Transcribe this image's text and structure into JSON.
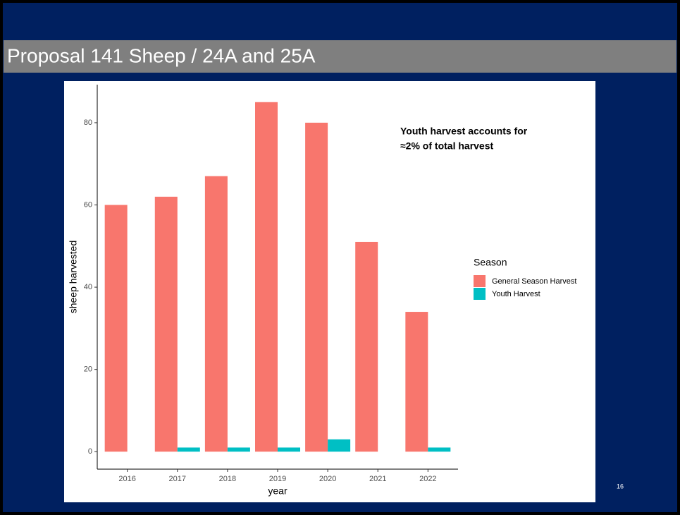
{
  "slide": {
    "title": "Proposal 141 Sheep / 24A and 25A",
    "page_number": "16"
  },
  "chart_data": {
    "type": "bar",
    "categories": [
      "2016",
      "2017",
      "2018",
      "2019",
      "2020",
      "2021",
      "2022"
    ],
    "series": [
      {
        "name": "General Season Harvest",
        "color": "#f8766d",
        "values": [
          60,
          62,
          67,
          85,
          80,
          51,
          34
        ]
      },
      {
        "name": "Youth Harvest",
        "color": "#00bfc4",
        "values": [
          0,
          1,
          1,
          1,
          3,
          0,
          1
        ]
      }
    ],
    "x_label": "year",
    "y_label": "sheep harvested",
    "legend_title": "Season",
    "legend": "right",
    "annotation": [
      "Youth harvest accounts for",
      "≈2% of total harvest"
    ],
    "ylim": [
      -4.25,
      89.25
    ],
    "yticks": [
      0,
      20,
      40,
      60,
      80
    ],
    "grid": false
  }
}
